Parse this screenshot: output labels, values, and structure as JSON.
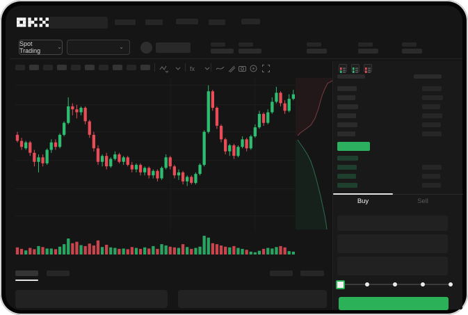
{
  "window": {
    "app_name": "OKX",
    "logo_text": "OKX"
  },
  "colors": {
    "up": "#2ebd70",
    "down": "#e84d57",
    "accent": "#2bb157",
    "price_bar": "#2cb05f",
    "bg": "#151515",
    "panel": "#191919",
    "grid": "#1e1e1e",
    "bid_row_tint": "#1e3f2d"
  },
  "topbar": {
    "nav_placeholder_widths": [
      30,
      25,
      32,
      24,
      27
    ]
  },
  "market_row": {
    "market_selector_label": "Spot Trading",
    "market_selector_chevron": "⌄",
    "pair_selector_chevron": "⌄",
    "left_stat_pairs": 2,
    "right_stat_pairs": 3
  },
  "chart_toolbar": {
    "timeframe_placeholders": 10,
    "icons": [
      "indicators-icon",
      "chevron-down-icon",
      "fx-icon",
      "chevron-down-icon",
      "line-tool-icon",
      "draw-tool-icon",
      "camera-icon",
      "settings-circle-icon",
      "fullscreen-icon"
    ]
  },
  "chart_data": {
    "type": "candlestick",
    "title": "",
    "xlabel": "",
    "ylabel": "",
    "y_range": [
      0,
      100
    ],
    "gridlines_price": [
      96,
      83,
      65,
      46,
      27,
      9
    ],
    "vertical_gridlines_x": [
      223,
      345
    ],
    "candles": [
      [
        63,
        65,
        58,
        59
      ],
      [
        59,
        61,
        53,
        55
      ],
      [
        54,
        59,
        53,
        58
      ],
      [
        58,
        59,
        49,
        51
      ],
      [
        51,
        53,
        42,
        45
      ],
      [
        45,
        50,
        38,
        48
      ],
      [
        48,
        50,
        42,
        44
      ],
      [
        44,
        54,
        43,
        53
      ],
      [
        53,
        60,
        51,
        58
      ],
      [
        58,
        60,
        53,
        55
      ],
      [
        55,
        64,
        54,
        63
      ],
      [
        63,
        72,
        62,
        71
      ],
      [
        71,
        88,
        70,
        82
      ],
      [
        82,
        84,
        76,
        80
      ],
      [
        80,
        83,
        74,
        78
      ],
      [
        78,
        82,
        76,
        81
      ],
      [
        81,
        82,
        70,
        72
      ],
      [
        72,
        73,
        61,
        63
      ],
      [
        63,
        65,
        52,
        54
      ],
      [
        54,
        56,
        43,
        45
      ],
      [
        45,
        50,
        42,
        49
      ],
      [
        49,
        51,
        40,
        42
      ],
      [
        42,
        48,
        41,
        47
      ],
      [
        47,
        52,
        46,
        50
      ],
      [
        50,
        51,
        44,
        45
      ],
      [
        45,
        49,
        43,
        48
      ],
      [
        48,
        49,
        42,
        43
      ],
      [
        43,
        45,
        38,
        40
      ],
      [
        40,
        44,
        38,
        43
      ],
      [
        43,
        44,
        36,
        38
      ],
      [
        38,
        42,
        36,
        41
      ],
      [
        41,
        42,
        34,
        36
      ],
      [
        36,
        40,
        34,
        39
      ],
      [
        39,
        40,
        32,
        34
      ],
      [
        34,
        42,
        33,
        41
      ],
      [
        41,
        50,
        40,
        48
      ],
      [
        48,
        49,
        40,
        42
      ],
      [
        42,
        43,
        34,
        36
      ],
      [
        36,
        40,
        33,
        38
      ],
      [
        38,
        39,
        30,
        32
      ],
      [
        32,
        36,
        29,
        35
      ],
      [
        35,
        36,
        30,
        31
      ],
      [
        31,
        38,
        30,
        37
      ],
      [
        37,
        44,
        36,
        43
      ],
      [
        43,
        66,
        42,
        65
      ],
      [
        65,
        96,
        64,
        92
      ],
      [
        92,
        93,
        79,
        81
      ],
      [
        81,
        82,
        67,
        69
      ],
      [
        69,
        70,
        58,
        60
      ],
      [
        60,
        61,
        50,
        52
      ],
      [
        52,
        57,
        49,
        56
      ],
      [
        56,
        57,
        47,
        49
      ],
      [
        49,
        56,
        48,
        55
      ],
      [
        55,
        62,
        54,
        60
      ],
      [
        60,
        61,
        52,
        54
      ],
      [
        54,
        63,
        53,
        62
      ],
      [
        62,
        70,
        61,
        68
      ],
      [
        68,
        79,
        67,
        77
      ],
      [
        77,
        78,
        69,
        71
      ],
      [
        71,
        80,
        70,
        78
      ],
      [
        78,
        88,
        77,
        85
      ],
      [
        85,
        95,
        84,
        91
      ],
      [
        91,
        92,
        82,
        84
      ],
      [
        84,
        86,
        77,
        79
      ],
      [
        79,
        90,
        78,
        87
      ],
      [
        87,
        93,
        86,
        90
      ]
    ],
    "volume": [
      38,
      30,
      22,
      35,
      28,
      45,
      40,
      32,
      32,
      28,
      42,
      55,
      85,
      60,
      68,
      50,
      45,
      58,
      48,
      75,
      40,
      52,
      38,
      35,
      30,
      32,
      28,
      40,
      35,
      30,
      38,
      32,
      45,
      30,
      55,
      48,
      42,
      38,
      35,
      55,
      40,
      30,
      35,
      42,
      100,
      90,
      60,
      55,
      48,
      42,
      38,
      45,
      35,
      30,
      25,
      15,
      12,
      20,
      30,
      35,
      32,
      40,
      45,
      38,
      18,
      15
    ],
    "depth": {
      "ask_points": [
        [
          53,
          4
        ],
        [
          46,
          8
        ],
        [
          42,
          16
        ],
        [
          38,
          26
        ],
        [
          33,
          44
        ],
        [
          28,
          58
        ],
        [
          22,
          68
        ],
        [
          14,
          74
        ],
        [
          7,
          79
        ],
        [
          3,
          83
        ]
      ],
      "bid_points": [
        [
          3,
          89
        ],
        [
          7,
          95
        ],
        [
          12,
          102
        ],
        [
          17,
          110
        ],
        [
          22,
          120
        ],
        [
          26,
          132
        ],
        [
          30,
          146
        ],
        [
          33,
          158
        ],
        [
          36,
          170
        ],
        [
          39,
          184
        ],
        [
          42,
          198
        ],
        [
          44,
          210
        ],
        [
          45,
          218
        ]
      ]
    }
  },
  "order_book": {
    "view_icons": [
      "book-both-icon",
      "book-bids-icon",
      "book-asks-icon"
    ],
    "header_bar_widths": [
      40,
      40
    ],
    "ask_rows": [
      [
        28,
        28
      ],
      [
        26,
        30
      ],
      [
        30,
        26
      ],
      [
        27,
        29
      ],
      [
        29,
        27
      ],
      [
        26,
        28
      ]
    ],
    "last_price_bar": {
      "width": 47,
      "direction": "up"
    },
    "bid_rows": [
      [
        30,
        0
      ],
      [
        28,
        28
      ],
      [
        27,
        26
      ],
      [
        29,
        27
      ]
    ]
  },
  "trade_form": {
    "tabs": {
      "buy_label": "Buy",
      "sell_label": "Sell",
      "active": "Buy"
    },
    "fields": 3,
    "slider": {
      "stops": 5,
      "value_index": 0
    },
    "submit_direction": "buy"
  },
  "bottom_panel": {
    "tab_placeholders": 2,
    "right_placeholders": 2,
    "input_placeholders": 2
  }
}
